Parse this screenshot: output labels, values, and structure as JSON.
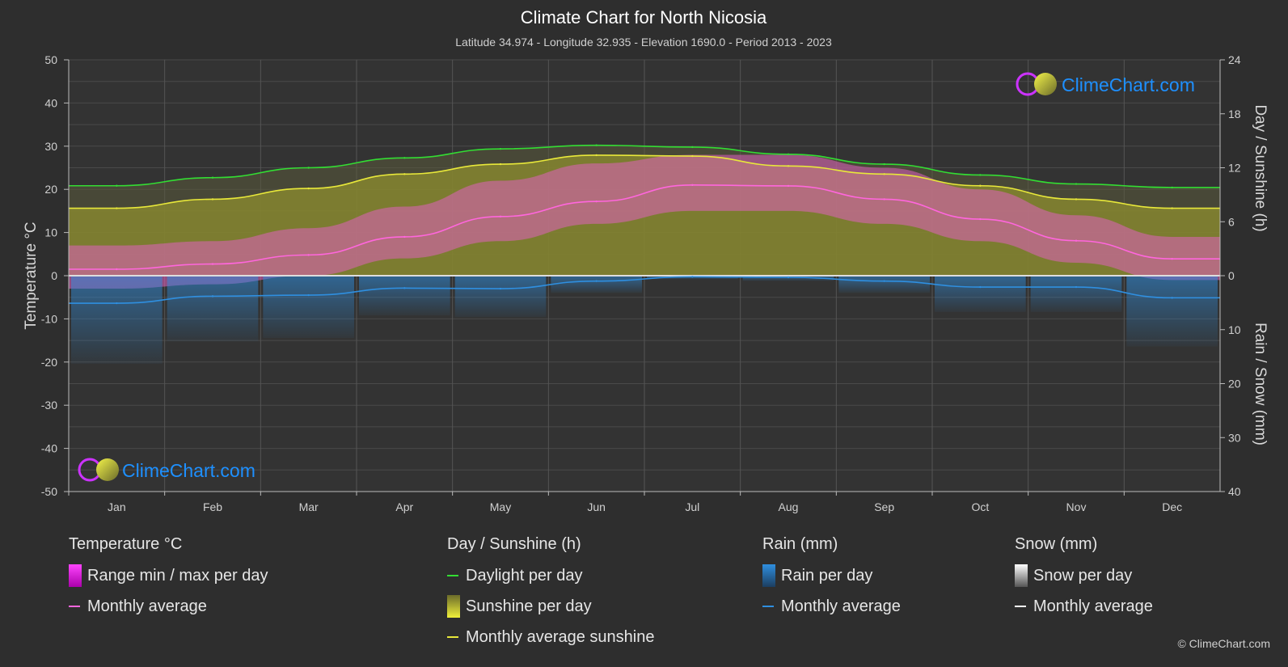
{
  "chart_data": {
    "type": "area",
    "title": "Climate Chart for North Nicosia",
    "subtitle": "Latitude 34.974 - Longitude 32.935 - Elevation 1690.0 - Period 2013 - 2023",
    "categories": [
      "Jan",
      "Feb",
      "Mar",
      "Apr",
      "May",
      "Jun",
      "Jul",
      "Aug",
      "Sep",
      "Oct",
      "Nov",
      "Dec"
    ],
    "ylabel_left": "Temperature °C",
    "ylabel_right_top": "Day / Sunshine (h)",
    "ylabel_right_bottom": "Rain / Snow (mm)",
    "ylim_temperature": [
      -50,
      50
    ],
    "yticks_temperature": [
      "50",
      "40",
      "30",
      "20",
      "10",
      "0",
      "-10",
      "-20",
      "-30",
      "-40",
      "-50"
    ],
    "yticks_hours": [
      "24",
      "18",
      "12",
      "6",
      "0"
    ],
    "yticks_mm": [
      "0",
      "10",
      "20",
      "30",
      "40"
    ],
    "grid": true,
    "series": [
      {
        "name": "Daylight per day",
        "unit": "h",
        "color": "#33dd33",
        "values": [
          10.0,
          10.9,
          12.0,
          13.1,
          14.1,
          14.5,
          14.3,
          13.5,
          12.4,
          11.2,
          10.2,
          9.8
        ]
      },
      {
        "name": "Monthly average sunshine",
        "unit": "h",
        "color": "#e8e83a",
        "values": [
          7.5,
          8.5,
          9.7,
          11.3,
          12.4,
          13.4,
          13.3,
          12.2,
          11.3,
          10.0,
          8.5,
          7.5
        ]
      },
      {
        "name": "Temperature monthly average",
        "unit": "°C",
        "color": "#ff66dd",
        "values": [
          1.5,
          2.7,
          4.8,
          9.0,
          13.7,
          17.2,
          21.0,
          20.8,
          17.7,
          13.1,
          8.1,
          3.9
        ]
      },
      {
        "name": "Rain monthly average",
        "unit": "mm",
        "color": "#2f8fe0",
        "values": [
          5.1,
          3.8,
          3.6,
          2.3,
          2.4,
          1.0,
          0.2,
          0.3,
          1.0,
          2.1,
          2.1,
          4.1
        ]
      },
      {
        "name": "Temperature max per day",
        "unit": "°C",
        "values": [
          7,
          8,
          11,
          16,
          22,
          26,
          28,
          28,
          25,
          20,
          14,
          9
        ]
      },
      {
        "name": "Temperature min per day",
        "unit": "°C",
        "values": [
          -3,
          -2,
          0,
          4,
          8,
          12,
          15,
          15,
          12,
          8,
          3,
          -1
        ]
      }
    ]
  },
  "legend": {
    "temperature": {
      "title": "Temperature °C",
      "range": "Range min / max per day",
      "avg": "Monthly average"
    },
    "sunshine": {
      "title": "Day / Sunshine (h)",
      "daylight": "Daylight per day",
      "sunshine": "Sunshine per day",
      "avg": "Monthly average sunshine"
    },
    "rain": {
      "title": "Rain (mm)",
      "per_day": "Rain per day",
      "avg": "Monthly average"
    },
    "snow": {
      "title": "Snow (mm)",
      "per_day": "Snow per day",
      "avg": "Monthly average"
    }
  },
  "logo_text": "ClimeChart.com",
  "copyright": "© ClimeChart.com",
  "colors": {
    "background": "#2e2e2e",
    "daylight": "#33dd33",
    "sunshine": "#e8e83a",
    "temp_avg": "#ff66dd",
    "temp_range": "#dd22dd",
    "rain": "#2f8fe0",
    "snow": "#ffffff",
    "logo_text": "#1e90ff"
  }
}
